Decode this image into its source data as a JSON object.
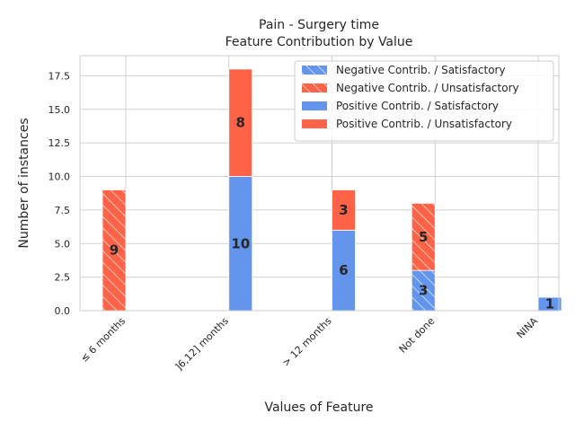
{
  "chart_data": {
    "type": "bar",
    "title": "Pain - Surgery time",
    "subtitle": "Feature Contribution by Value",
    "xlabel": "Values of Feature",
    "ylabel": "Number of instances",
    "categories": [
      "≤ 6 months",
      "]6,12] months",
      "> 12 months",
      "Not done",
      "NINA"
    ],
    "ylim": [
      0,
      19
    ],
    "yticks": [
      0.0,
      2.5,
      5.0,
      7.5,
      10.0,
      12.5,
      15.0,
      17.5
    ],
    "ytick_labels": [
      "0.0",
      "2.5",
      "5.0",
      "7.5",
      "10.0",
      "12.5",
      "15.0",
      "17.5"
    ],
    "grid": true,
    "legend_position": "top-right",
    "colors": {
      "satisfactory": "#6495ED",
      "unsatisfactory": "#FF6347"
    },
    "series": [
      {
        "name": "Negative Contrib. / Satisfactory",
        "contribution": "negative",
        "outcome": "satisfactory",
        "values": [
          0,
          0,
          0,
          3,
          0
        ]
      },
      {
        "name": "Negative Contrib. / Unsatisfactory",
        "contribution": "negative",
        "outcome": "unsatisfactory",
        "values": [
          9,
          0,
          0,
          5,
          0
        ]
      },
      {
        "name": "Positive Contrib. / Satisfactory",
        "contribution": "positive",
        "outcome": "satisfactory",
        "values": [
          0,
          10,
          6,
          0,
          1
        ]
      },
      {
        "name": "Positive Contrib. / Unsatisfactory",
        "contribution": "positive",
        "outcome": "unsatisfactory",
        "values": [
          0,
          8,
          3,
          0,
          0
        ]
      }
    ]
  }
}
